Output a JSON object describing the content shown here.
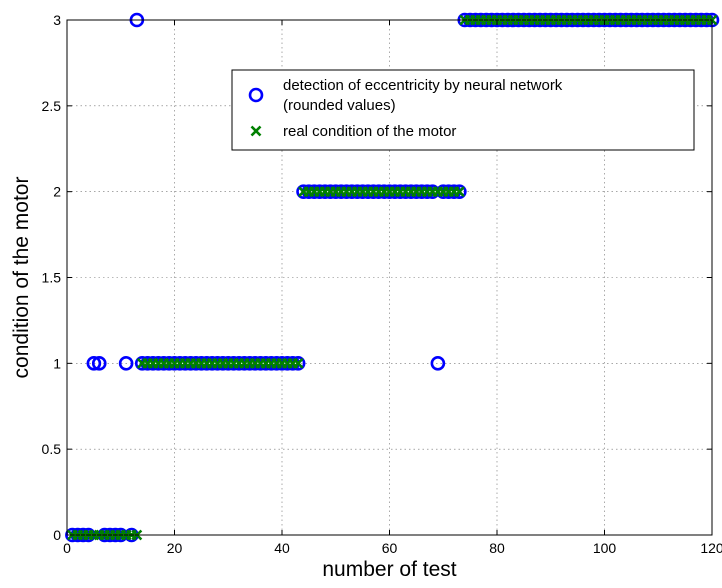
{
  "chart_data": {
    "type": "scatter",
    "xlabel": "number of test",
    "ylabel": "condition of the motor",
    "xlim": [
      0,
      120
    ],
    "ylim": [
      0,
      3
    ],
    "xticks": [
      "0",
      "20",
      "40",
      "60",
      "80",
      "100",
      "120"
    ],
    "yticks": [
      "0",
      "0.5",
      "1",
      "1.5",
      "2",
      "2.5",
      "3"
    ],
    "grid": true,
    "legend_position": "top-right",
    "series": [
      {
        "name": "detection of eccentricity by neural network (rounded values)",
        "label_lines": [
          "detection of eccentricity by neural network",
          "(rounded values)"
        ],
        "marker": "circle",
        "color": "#0000ff",
        "points": [
          [
            1,
            0
          ],
          [
            2,
            0
          ],
          [
            3,
            0
          ],
          [
            4,
            0
          ],
          [
            5,
            1
          ],
          [
            6,
            1
          ],
          [
            7,
            0
          ],
          [
            8,
            0
          ],
          [
            9,
            0
          ],
          [
            10,
            0
          ],
          [
            11,
            1
          ],
          [
            12,
            0
          ],
          [
            13,
            3
          ],
          [
            14,
            1
          ],
          [
            15,
            1
          ],
          [
            16,
            1
          ],
          [
            17,
            1
          ],
          [
            18,
            1
          ],
          [
            19,
            1
          ],
          [
            20,
            1
          ],
          [
            21,
            1
          ],
          [
            22,
            1
          ],
          [
            23,
            1
          ],
          [
            24,
            1
          ],
          [
            25,
            1
          ],
          [
            26,
            1
          ],
          [
            27,
            1
          ],
          [
            28,
            1
          ],
          [
            29,
            1
          ],
          [
            30,
            1
          ],
          [
            31,
            1
          ],
          [
            32,
            1
          ],
          [
            33,
            1
          ],
          [
            34,
            1
          ],
          [
            35,
            1
          ],
          [
            36,
            1
          ],
          [
            37,
            1
          ],
          [
            38,
            1
          ],
          [
            39,
            1
          ],
          [
            40,
            1
          ],
          [
            41,
            1
          ],
          [
            42,
            1
          ],
          [
            43,
            1
          ],
          [
            44,
            2
          ],
          [
            45,
            2
          ],
          [
            46,
            2
          ],
          [
            47,
            2
          ],
          [
            48,
            2
          ],
          [
            49,
            2
          ],
          [
            50,
            2
          ],
          [
            51,
            2
          ],
          [
            52,
            2
          ],
          [
            53,
            2
          ],
          [
            54,
            2
          ],
          [
            55,
            2
          ],
          [
            56,
            2
          ],
          [
            57,
            2
          ],
          [
            58,
            2
          ],
          [
            59,
            2
          ],
          [
            60,
            2
          ],
          [
            61,
            2
          ],
          [
            62,
            2
          ],
          [
            63,
            2
          ],
          [
            64,
            2
          ],
          [
            65,
            2
          ],
          [
            66,
            2
          ],
          [
            67,
            2
          ],
          [
            68,
            2
          ],
          [
            69,
            1
          ],
          [
            70,
            2
          ],
          [
            71,
            2
          ],
          [
            72,
            2
          ],
          [
            73,
            2
          ],
          [
            74,
            3
          ],
          [
            75,
            3
          ],
          [
            76,
            3
          ],
          [
            77,
            3
          ],
          [
            78,
            3
          ],
          [
            79,
            3
          ],
          [
            80,
            3
          ],
          [
            81,
            3
          ],
          [
            82,
            3
          ],
          [
            83,
            3
          ],
          [
            84,
            3
          ],
          [
            85,
            3
          ],
          [
            86,
            3
          ],
          [
            87,
            3
          ],
          [
            88,
            3
          ],
          [
            89,
            3
          ],
          [
            90,
            3
          ],
          [
            91,
            3
          ],
          [
            92,
            3
          ],
          [
            93,
            3
          ],
          [
            94,
            3
          ],
          [
            95,
            3
          ],
          [
            96,
            3
          ],
          [
            97,
            3
          ],
          [
            98,
            3
          ],
          [
            99,
            3
          ],
          [
            100,
            3
          ],
          [
            101,
            3
          ],
          [
            102,
            3
          ],
          [
            103,
            3
          ],
          [
            104,
            3
          ],
          [
            105,
            3
          ],
          [
            106,
            3
          ],
          [
            107,
            3
          ],
          [
            108,
            3
          ],
          [
            109,
            3
          ],
          [
            110,
            3
          ],
          [
            111,
            3
          ],
          [
            112,
            3
          ],
          [
            113,
            3
          ],
          [
            114,
            3
          ],
          [
            115,
            3
          ],
          [
            116,
            3
          ],
          [
            117,
            3
          ],
          [
            118,
            3
          ],
          [
            119,
            3
          ],
          [
            120,
            3
          ]
        ]
      },
      {
        "name": "real condition of the motor",
        "label_lines": [
          "real condition of the motor"
        ],
        "marker": "x",
        "color": "#008000",
        "points": [
          [
            1,
            0
          ],
          [
            2,
            0
          ],
          [
            3,
            0
          ],
          [
            4,
            0
          ],
          [
            5,
            0
          ],
          [
            6,
            0
          ],
          [
            7,
            0
          ],
          [
            8,
            0
          ],
          [
            9,
            0
          ],
          [
            10,
            0
          ],
          [
            11,
            0
          ],
          [
            12,
            0
          ],
          [
            13,
            0
          ],
          [
            14,
            1
          ],
          [
            15,
            1
          ],
          [
            16,
            1
          ],
          [
            17,
            1
          ],
          [
            18,
            1
          ],
          [
            19,
            1
          ],
          [
            20,
            1
          ],
          [
            21,
            1
          ],
          [
            22,
            1
          ],
          [
            23,
            1
          ],
          [
            24,
            1
          ],
          [
            25,
            1
          ],
          [
            26,
            1
          ],
          [
            27,
            1
          ],
          [
            28,
            1
          ],
          [
            29,
            1
          ],
          [
            30,
            1
          ],
          [
            31,
            1
          ],
          [
            32,
            1
          ],
          [
            33,
            1
          ],
          [
            34,
            1
          ],
          [
            35,
            1
          ],
          [
            36,
            1
          ],
          [
            37,
            1
          ],
          [
            38,
            1
          ],
          [
            39,
            1
          ],
          [
            40,
            1
          ],
          [
            41,
            1
          ],
          [
            42,
            1
          ],
          [
            43,
            1
          ],
          [
            44,
            2
          ],
          [
            45,
            2
          ],
          [
            46,
            2
          ],
          [
            47,
            2
          ],
          [
            48,
            2
          ],
          [
            49,
            2
          ],
          [
            50,
            2
          ],
          [
            51,
            2
          ],
          [
            52,
            2
          ],
          [
            53,
            2
          ],
          [
            54,
            2
          ],
          [
            55,
            2
          ],
          [
            56,
            2
          ],
          [
            57,
            2
          ],
          [
            58,
            2
          ],
          [
            59,
            2
          ],
          [
            60,
            2
          ],
          [
            61,
            2
          ],
          [
            62,
            2
          ],
          [
            63,
            2
          ],
          [
            64,
            2
          ],
          [
            65,
            2
          ],
          [
            66,
            2
          ],
          [
            67,
            2
          ],
          [
            68,
            2
          ],
          [
            69,
            2
          ],
          [
            70,
            2
          ],
          [
            71,
            2
          ],
          [
            72,
            2
          ],
          [
            73,
            2
          ],
          [
            74,
            3
          ],
          [
            75,
            3
          ],
          [
            76,
            3
          ],
          [
            77,
            3
          ],
          [
            78,
            3
          ],
          [
            79,
            3
          ],
          [
            80,
            3
          ],
          [
            81,
            3
          ],
          [
            82,
            3
          ],
          [
            83,
            3
          ],
          [
            84,
            3
          ],
          [
            85,
            3
          ],
          [
            86,
            3
          ],
          [
            87,
            3
          ],
          [
            88,
            3
          ],
          [
            89,
            3
          ],
          [
            90,
            3
          ],
          [
            91,
            3
          ],
          [
            92,
            3
          ],
          [
            93,
            3
          ],
          [
            94,
            3
          ],
          [
            95,
            3
          ],
          [
            96,
            3
          ],
          [
            97,
            3
          ],
          [
            98,
            3
          ],
          [
            99,
            3
          ],
          [
            100,
            3
          ],
          [
            101,
            3
          ],
          [
            102,
            3
          ],
          [
            103,
            3
          ],
          [
            104,
            3
          ],
          [
            105,
            3
          ],
          [
            106,
            3
          ],
          [
            107,
            3
          ],
          [
            108,
            3
          ],
          [
            109,
            3
          ],
          [
            110,
            3
          ],
          [
            111,
            3
          ],
          [
            112,
            3
          ],
          [
            113,
            3
          ],
          [
            114,
            3
          ],
          [
            115,
            3
          ],
          [
            116,
            3
          ],
          [
            117,
            3
          ],
          [
            118,
            3
          ],
          [
            119,
            3
          ],
          [
            120,
            3
          ]
        ]
      }
    ]
  }
}
